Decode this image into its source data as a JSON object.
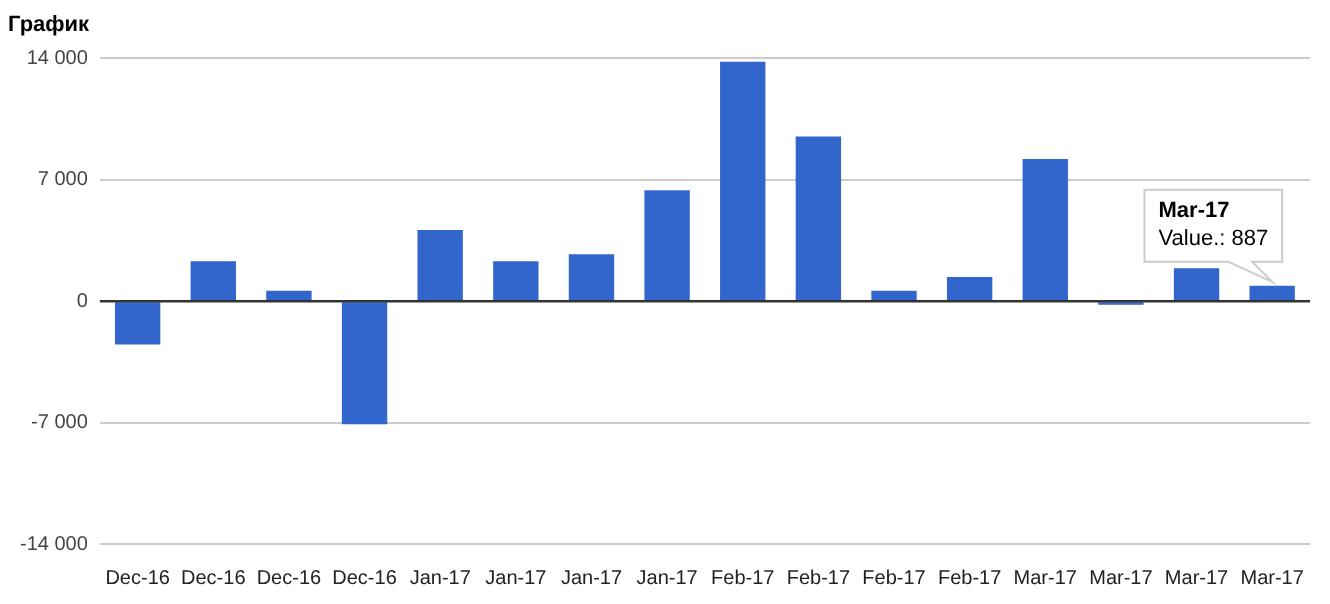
{
  "chart_data": {
    "type": "bar",
    "title": "График",
    "categories": [
      "Dec-16",
      "Dec-16",
      "Dec-16",
      "Dec-16",
      "Jan-17",
      "Jan-17",
      "Jan-17",
      "Jan-17",
      "Feb-17",
      "Feb-17",
      "Feb-17",
      "Feb-17",
      "Mar-17",
      "Mar-17",
      "Mar-17",
      "Mar-17"
    ],
    "values": [
      -2500,
      2300,
      600,
      -7100,
      4100,
      2300,
      2700,
      6400,
      13800,
      9500,
      600,
      1400,
      8200,
      -200,
      1900,
      887
    ],
    "color": "#3366cc",
    "ylim": [
      -14000,
      14000
    ],
    "yticks": [
      {
        "value": -14000,
        "label": "-14 000"
      },
      {
        "value": -7000,
        "label": "-7 000"
      },
      0,
      {
        "value": 7000,
        "label": "7 000"
      },
      {
        "value": 14000,
        "label": "14 000"
      }
    ],
    "grid": "y",
    "annotations": [
      "Mar-17\nValue.: 887"
    ]
  }
}
